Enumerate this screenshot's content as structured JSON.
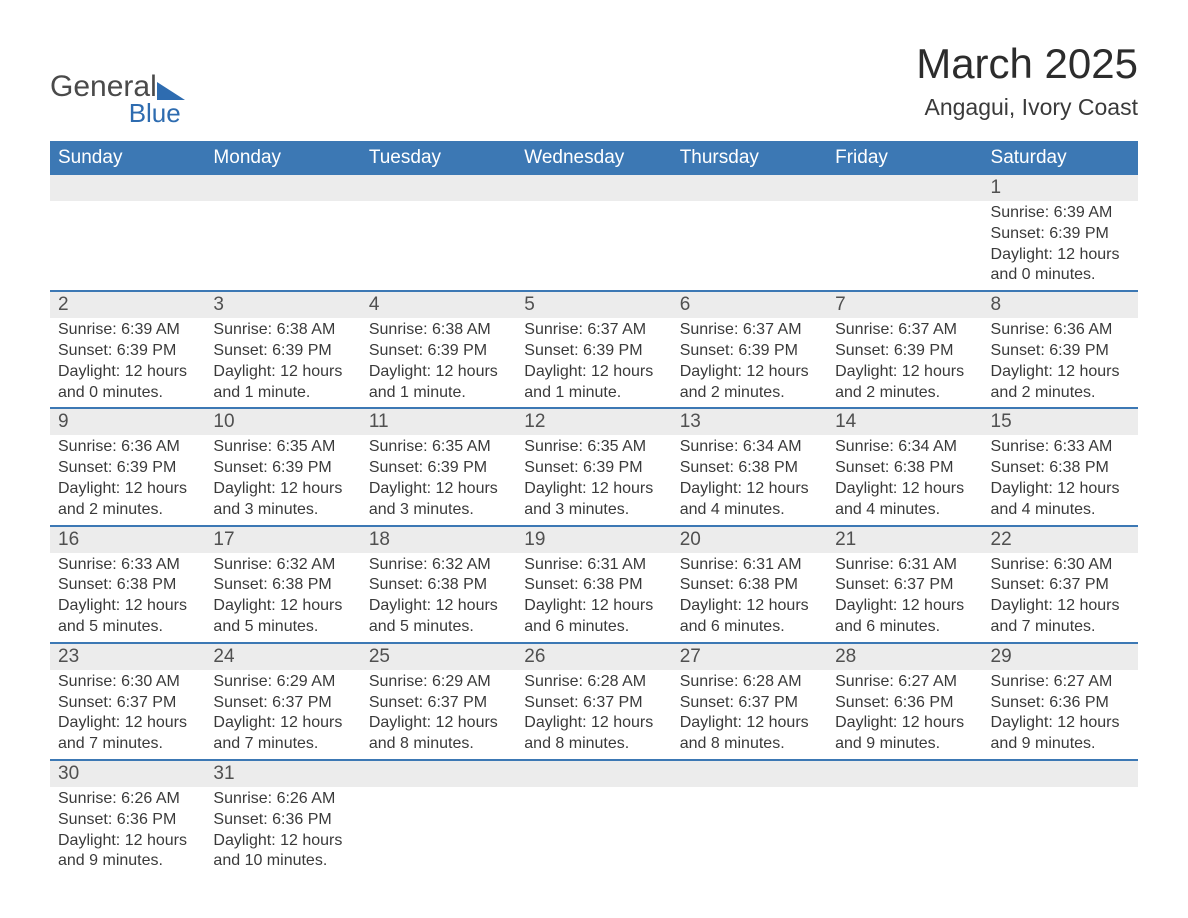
{
  "logo": {
    "word1": "General",
    "word2": "Blue"
  },
  "title": "March 2025",
  "location": "Angagui, Ivory Coast",
  "colors": {
    "header_bg": "#3c78b4",
    "header_text": "#ffffff",
    "daynum_bg": "#ececec",
    "row_border": "#3c78b4",
    "text": "#3a3a3a",
    "logo_accent": "#2e6cb0"
  },
  "typography": {
    "title_fontsize": 42,
    "location_fontsize": 23,
    "header_fontsize": 19,
    "daynum_fontsize": 19,
    "detail_fontsize": 16
  },
  "weekdays": [
    "Sunday",
    "Monday",
    "Tuesday",
    "Wednesday",
    "Thursday",
    "Friday",
    "Saturday"
  ],
  "weeks": [
    [
      null,
      null,
      null,
      null,
      null,
      null,
      {
        "n": "1",
        "sunrise": "Sunrise: 6:39 AM",
        "sunset": "Sunset: 6:39 PM",
        "daylight": "Daylight: 12 hours and 0 minutes."
      }
    ],
    [
      {
        "n": "2",
        "sunrise": "Sunrise: 6:39 AM",
        "sunset": "Sunset: 6:39 PM",
        "daylight": "Daylight: 12 hours and 0 minutes."
      },
      {
        "n": "3",
        "sunrise": "Sunrise: 6:38 AM",
        "sunset": "Sunset: 6:39 PM",
        "daylight": "Daylight: 12 hours and 1 minute."
      },
      {
        "n": "4",
        "sunrise": "Sunrise: 6:38 AM",
        "sunset": "Sunset: 6:39 PM",
        "daylight": "Daylight: 12 hours and 1 minute."
      },
      {
        "n": "5",
        "sunrise": "Sunrise: 6:37 AM",
        "sunset": "Sunset: 6:39 PM",
        "daylight": "Daylight: 12 hours and 1 minute."
      },
      {
        "n": "6",
        "sunrise": "Sunrise: 6:37 AM",
        "sunset": "Sunset: 6:39 PM",
        "daylight": "Daylight: 12 hours and 2 minutes."
      },
      {
        "n": "7",
        "sunrise": "Sunrise: 6:37 AM",
        "sunset": "Sunset: 6:39 PM",
        "daylight": "Daylight: 12 hours and 2 minutes."
      },
      {
        "n": "8",
        "sunrise": "Sunrise: 6:36 AM",
        "sunset": "Sunset: 6:39 PM",
        "daylight": "Daylight: 12 hours and 2 minutes."
      }
    ],
    [
      {
        "n": "9",
        "sunrise": "Sunrise: 6:36 AM",
        "sunset": "Sunset: 6:39 PM",
        "daylight": "Daylight: 12 hours and 2 minutes."
      },
      {
        "n": "10",
        "sunrise": "Sunrise: 6:35 AM",
        "sunset": "Sunset: 6:39 PM",
        "daylight": "Daylight: 12 hours and 3 minutes."
      },
      {
        "n": "11",
        "sunrise": "Sunrise: 6:35 AM",
        "sunset": "Sunset: 6:39 PM",
        "daylight": "Daylight: 12 hours and 3 minutes."
      },
      {
        "n": "12",
        "sunrise": "Sunrise: 6:35 AM",
        "sunset": "Sunset: 6:39 PM",
        "daylight": "Daylight: 12 hours and 3 minutes."
      },
      {
        "n": "13",
        "sunrise": "Sunrise: 6:34 AM",
        "sunset": "Sunset: 6:38 PM",
        "daylight": "Daylight: 12 hours and 4 minutes."
      },
      {
        "n": "14",
        "sunrise": "Sunrise: 6:34 AM",
        "sunset": "Sunset: 6:38 PM",
        "daylight": "Daylight: 12 hours and 4 minutes."
      },
      {
        "n": "15",
        "sunrise": "Sunrise: 6:33 AM",
        "sunset": "Sunset: 6:38 PM",
        "daylight": "Daylight: 12 hours and 4 minutes."
      }
    ],
    [
      {
        "n": "16",
        "sunrise": "Sunrise: 6:33 AM",
        "sunset": "Sunset: 6:38 PM",
        "daylight": "Daylight: 12 hours and 5 minutes."
      },
      {
        "n": "17",
        "sunrise": "Sunrise: 6:32 AM",
        "sunset": "Sunset: 6:38 PM",
        "daylight": "Daylight: 12 hours and 5 minutes."
      },
      {
        "n": "18",
        "sunrise": "Sunrise: 6:32 AM",
        "sunset": "Sunset: 6:38 PM",
        "daylight": "Daylight: 12 hours and 5 minutes."
      },
      {
        "n": "19",
        "sunrise": "Sunrise: 6:31 AM",
        "sunset": "Sunset: 6:38 PM",
        "daylight": "Daylight: 12 hours and 6 minutes."
      },
      {
        "n": "20",
        "sunrise": "Sunrise: 6:31 AM",
        "sunset": "Sunset: 6:38 PM",
        "daylight": "Daylight: 12 hours and 6 minutes."
      },
      {
        "n": "21",
        "sunrise": "Sunrise: 6:31 AM",
        "sunset": "Sunset: 6:37 PM",
        "daylight": "Daylight: 12 hours and 6 minutes."
      },
      {
        "n": "22",
        "sunrise": "Sunrise: 6:30 AM",
        "sunset": "Sunset: 6:37 PM",
        "daylight": "Daylight: 12 hours and 7 minutes."
      }
    ],
    [
      {
        "n": "23",
        "sunrise": "Sunrise: 6:30 AM",
        "sunset": "Sunset: 6:37 PM",
        "daylight": "Daylight: 12 hours and 7 minutes."
      },
      {
        "n": "24",
        "sunrise": "Sunrise: 6:29 AM",
        "sunset": "Sunset: 6:37 PM",
        "daylight": "Daylight: 12 hours and 7 minutes."
      },
      {
        "n": "25",
        "sunrise": "Sunrise: 6:29 AM",
        "sunset": "Sunset: 6:37 PM",
        "daylight": "Daylight: 12 hours and 8 minutes."
      },
      {
        "n": "26",
        "sunrise": "Sunrise: 6:28 AM",
        "sunset": "Sunset: 6:37 PM",
        "daylight": "Daylight: 12 hours and 8 minutes."
      },
      {
        "n": "27",
        "sunrise": "Sunrise: 6:28 AM",
        "sunset": "Sunset: 6:37 PM",
        "daylight": "Daylight: 12 hours and 8 minutes."
      },
      {
        "n": "28",
        "sunrise": "Sunrise: 6:27 AM",
        "sunset": "Sunset: 6:36 PM",
        "daylight": "Daylight: 12 hours and 9 minutes."
      },
      {
        "n": "29",
        "sunrise": "Sunrise: 6:27 AM",
        "sunset": "Sunset: 6:36 PM",
        "daylight": "Daylight: 12 hours and 9 minutes."
      }
    ],
    [
      {
        "n": "30",
        "sunrise": "Sunrise: 6:26 AM",
        "sunset": "Sunset: 6:36 PM",
        "daylight": "Daylight: 12 hours and 9 minutes."
      },
      {
        "n": "31",
        "sunrise": "Sunrise: 6:26 AM",
        "sunset": "Sunset: 6:36 PM",
        "daylight": "Daylight: 12 hours and 10 minutes."
      },
      null,
      null,
      null,
      null,
      null
    ]
  ]
}
